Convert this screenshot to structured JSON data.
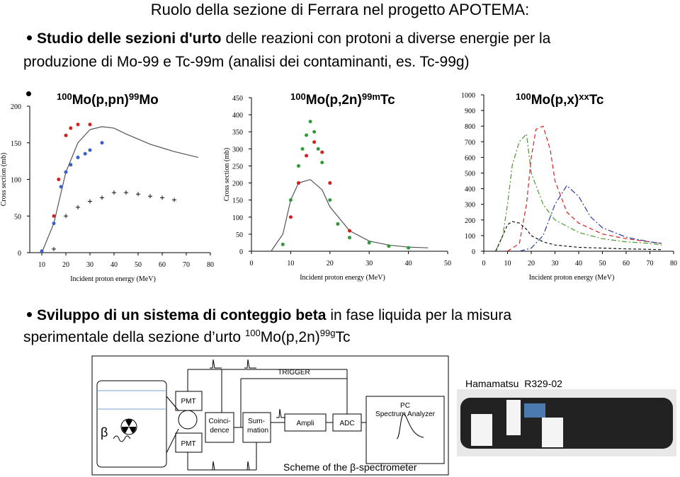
{
  "title": "Ruolo della sezione di Ferrara nel progetto APOTEMA:",
  "bullets": [
    {
      "bold": "Studio delle sezioni d'urto",
      "text": "delle reazioni con protoni a diverse energie per la",
      "line2": "produzione di Mo-99 e Tc-99m (analisi dei contaminanti, es. Tc-99g)"
    },
    {
      "bold": "Sviluppo di un sistema di conteggio beta",
      "text": "in fase liquida per la misura",
      "line2": [
        "sperimentale della sezione d’urto",
        "100",
        "Mo(p,2n)",
        "99g",
        "Tc"
      ]
    }
  ],
  "chart_data": [
    {
      "type": "scatter",
      "title": [
        "100",
        "Mo(p,pn)",
        "99",
        "Mo"
      ],
      "xlabel": "Incident proton energy (MeV)",
      "ylabel": "Cross section (mb)",
      "xlim": [
        5,
        80
      ],
      "ylim": [
        0,
        200
      ],
      "xticks": [
        10,
        20,
        30,
        40,
        50,
        60,
        70,
        80
      ],
      "yticks": [
        0,
        50,
        100,
        150,
        200
      ],
      "series": [
        {
          "color": "#555555",
          "marker": "none",
          "dash": "none",
          "x": [
            10,
            15,
            20,
            25,
            30,
            35,
            40,
            45,
            50,
            55,
            60,
            65,
            70,
            75
          ],
          "values": [
            0,
            40,
            110,
            150,
            168,
            172,
            170,
            162,
            155,
            148,
            143,
            138,
            134,
            130
          ]
        },
        {
          "color": "#111111",
          "marker": "plus",
          "x": [
            15,
            20,
            25,
            30,
            35,
            40,
            45,
            50,
            55,
            60,
            65
          ],
          "values": [
            5,
            50,
            62,
            70,
            75,
            82,
            82,
            80,
            77,
            75,
            72
          ]
        },
        {
          "color": "#3a5fcd",
          "marker": "circle",
          "x": [
            10,
            15,
            18,
            20,
            22,
            25,
            28,
            30,
            35
          ],
          "values": [
            2,
            40,
            90,
            110,
            120,
            130,
            135,
            140,
            150
          ]
        },
        {
          "color": "#d42020",
          "marker": "circle",
          "x": [
            15,
            17,
            20,
            22,
            25,
            30
          ],
          "values": [
            50,
            100,
            160,
            170,
            175,
            175
          ]
        }
      ]
    },
    {
      "type": "scatter",
      "title": [
        "100",
        "Mo(p,2n)",
        "99m",
        "Tc"
      ],
      "xlabel": "Incident proton energy (MeV)",
      "ylabel": "Cross section (mb)",
      "xlim": [
        0,
        50
      ],
      "ylim": [
        0,
        450
      ],
      "xticks": [
        0,
        10,
        20,
        30,
        40,
        50
      ],
      "yticks": [
        0,
        50,
        100,
        150,
        200,
        250,
        300,
        350,
        400,
        450
      ],
      "series": [
        {
          "color": "#555555",
          "marker": "none",
          "dash": "none",
          "x": [
            5,
            8,
            10,
            12,
            15,
            18,
            20,
            25,
            30,
            35,
            40,
            45
          ],
          "values": [
            0,
            50,
            150,
            200,
            210,
            180,
            130,
            60,
            30,
            18,
            12,
            10
          ]
        },
        {
          "color": "#2e9a3a",
          "marker": "circle",
          "x": [
            8,
            10,
            12,
            13,
            14,
            15,
            16,
            17,
            18,
            20,
            22,
            25,
            30,
            35,
            40
          ],
          "values": [
            20,
            150,
            250,
            300,
            340,
            380,
            350,
            300,
            260,
            150,
            80,
            40,
            25,
            15,
            10
          ]
        },
        {
          "color": "#d42020",
          "marker": "circle",
          "x": [
            10,
            12,
            14,
            16,
            18,
            20,
            25
          ],
          "values": [
            100,
            200,
            280,
            320,
            290,
            200,
            60
          ]
        }
      ]
    },
    {
      "type": "scatter",
      "title": [
        "100",
        "Mo(p,x)",
        "xx",
        "Tc"
      ],
      "xlabel": "Incident proton energy (MeV)",
      "xlim": [
        0,
        80
      ],
      "ylim": [
        0,
        1000
      ],
      "xticks": [
        0,
        10,
        20,
        30,
        40,
        50,
        60,
        70,
        80
      ],
      "yticks": [
        0,
        100,
        200,
        300,
        400,
        500,
        600,
        700,
        800,
        900,
        1000
      ],
      "series": [
        {
          "color": "#4a9a2a",
          "marker": "none",
          "dash": "7 3 2 3",
          "x": [
            5,
            8,
            10,
            12,
            15,
            18,
            20,
            25,
            30,
            40,
            50,
            60,
            70,
            75
          ],
          "values": [
            0,
            100,
            300,
            550,
            700,
            750,
            500,
            300,
            200,
            120,
            80,
            60,
            50,
            40
          ]
        },
        {
          "color": "#d42020",
          "marker": "none",
          "dash": "6 4",
          "x": [
            10,
            15,
            18,
            20,
            22,
            25,
            28,
            30,
            35,
            40,
            50,
            60,
            70,
            75
          ],
          "values": [
            0,
            50,
            300,
            600,
            780,
            800,
            650,
            450,
            250,
            180,
            110,
            80,
            60,
            50
          ]
        },
        {
          "color": "#2a3aa0",
          "marker": "none",
          "dash": "8 3 2 3",
          "x": [
            15,
            20,
            25,
            30,
            35,
            40,
            45,
            50,
            60,
            70,
            75
          ],
          "values": [
            0,
            20,
            100,
            300,
            420,
            350,
            220,
            150,
            90,
            60,
            50
          ]
        },
        {
          "color": "#111111",
          "marker": "none",
          "dash": "4 3",
          "x": [
            5,
            8,
            10,
            12,
            15,
            18,
            20,
            25,
            30,
            40,
            50,
            60,
            70,
            75
          ],
          "values": [
            0,
            100,
            170,
            190,
            180,
            140,
            100,
            60,
            40,
            25,
            20,
            15,
            12,
            10
          ]
        }
      ]
    }
  ],
  "diagram": {
    "trigger": "TRIGGER",
    "pmt_top": "PMT",
    "pmt_bottom": "PMT",
    "coincidence": [
      "Coinci-",
      "dence"
    ],
    "summation": [
      "Sum-",
      "mation"
    ],
    "ampli": "Ampli",
    "adc": "ADC",
    "pc": [
      "PC",
      "Spectrum Analyzer"
    ],
    "beta": "β",
    "caption": "Scheme of the β-spectrometer"
  },
  "photo_caption": "Hamamatsu  R329-02"
}
